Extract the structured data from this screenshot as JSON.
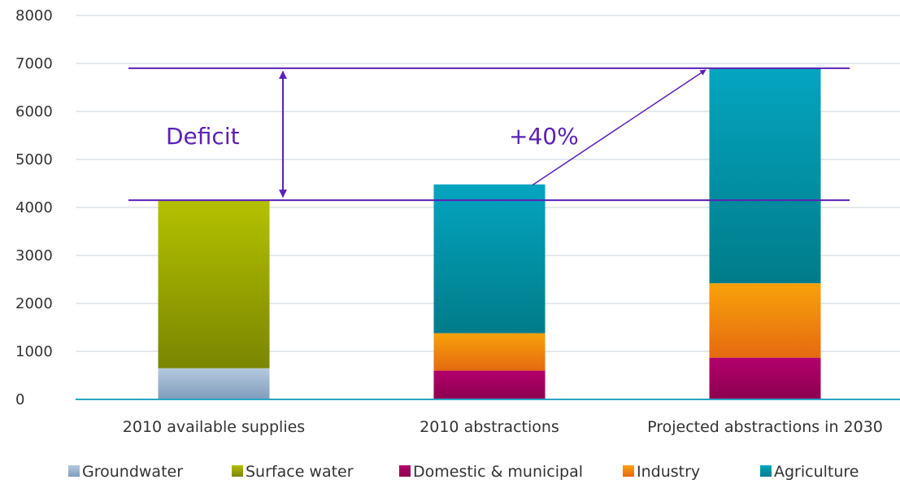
{
  "chart_data": {
    "type": "bar",
    "stacked": true,
    "categories": [
      "2010 available supplies",
      "2010 abstractions",
      "Projected abstractions in 2030"
    ],
    "series": [
      {
        "name": "Groundwater",
        "values": [
          650,
          0,
          0
        ],
        "color": "#8aa8c8"
      },
      {
        "name": "Surface water",
        "values": [
          3500,
          0,
          0
        ],
        "color": "#8f9a00"
      },
      {
        "name": "Domestic & municipal",
        "values": [
          0,
          600,
          870
        ],
        "color": "#a3005f"
      },
      {
        "name": "Industry",
        "values": [
          0,
          780,
          1550
        ],
        "color": "#f07c10"
      },
      {
        "name": "Agriculture",
        "values": [
          0,
          3100,
          4480
        ],
        "color": "#0e8ea0"
      }
    ],
    "yticks": [
      0,
      1000,
      2000,
      3000,
      4000,
      5000,
      6000,
      7000,
      8000
    ],
    "ylim": [
      0,
      8000
    ],
    "grid": true,
    "legend_position": "bottom",
    "reference_lines": [
      4150,
      6900
    ],
    "annotations": [
      {
        "text": "Deficit"
      },
      {
        "text": "+40%"
      }
    ],
    "annotation_color": "#5b21b6"
  }
}
